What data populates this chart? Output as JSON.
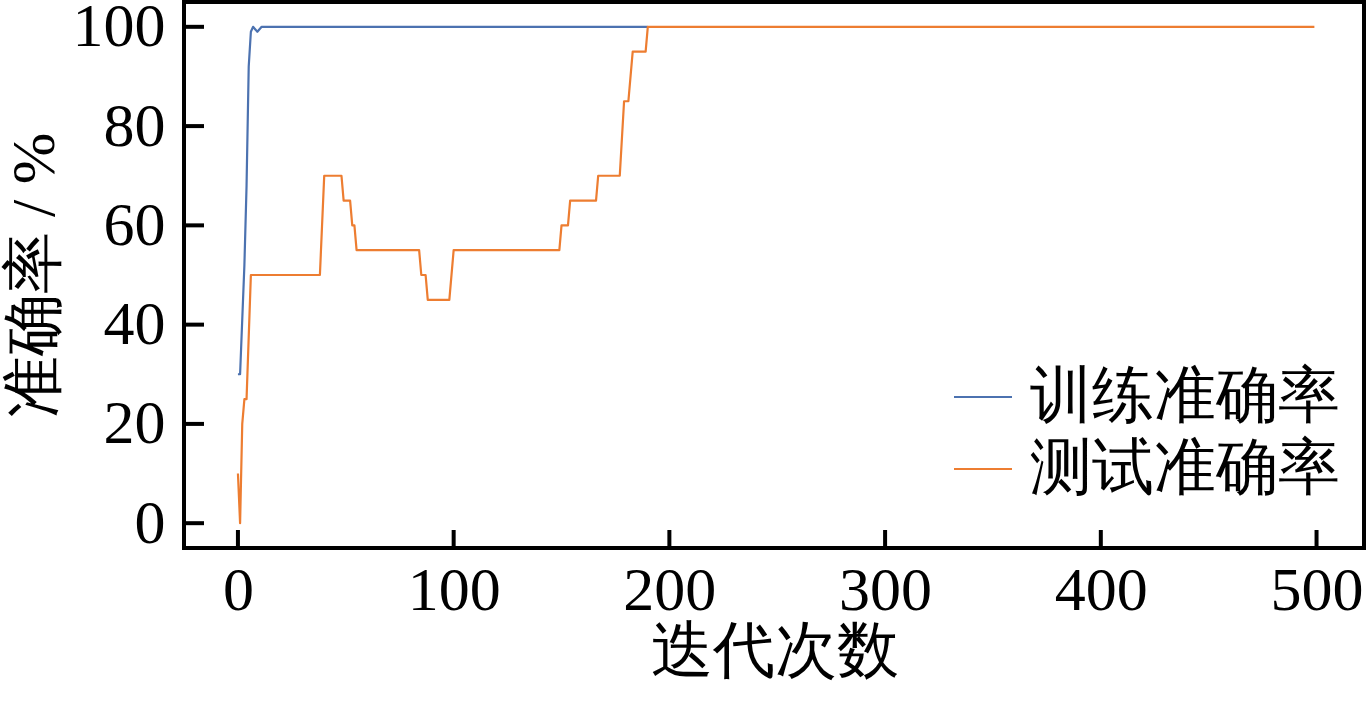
{
  "chart_data": {
    "type": "line",
    "xlabel": "迭代次数",
    "ylabel": "准确率 / %",
    "xlim": [
      -25,
      522
    ],
    "ylim": [
      -5,
      105
    ],
    "xticks": [
      0,
      100,
      200,
      300,
      400,
      500
    ],
    "yticks": [
      0,
      20,
      40,
      60,
      80,
      100
    ],
    "grid": false,
    "legend": "bottom right",
    "line_style": "solid",
    "series": [
      {
        "name": "训练准确率",
        "color": "#4c72b0",
        "x": [
          0,
          1,
          3,
          4,
          5,
          6,
          7,
          9,
          11,
          190
        ],
        "values": [
          30,
          30,
          52,
          68,
          92,
          99,
          100,
          99,
          100,
          100
        ]
      },
      {
        "name": "测试准确率",
        "color": "#ed7d31",
        "x": [
          0,
          1,
          2,
          3,
          4,
          6,
          38,
          40,
          48,
          49,
          52,
          53,
          54,
          55,
          84,
          85,
          87,
          88,
          98,
          100,
          149,
          150,
          153,
          154,
          166,
          167,
          177,
          179,
          181,
          183,
          189,
          190,
          499
        ],
        "values": [
          10,
          0,
          20,
          25,
          25,
          50,
          50,
          70,
          70,
          65,
          65,
          60,
          60,
          55,
          55,
          50,
          50,
          45,
          45,
          55,
          55,
          60,
          60,
          65,
          65,
          70,
          70,
          85,
          85,
          95,
          95,
          100,
          100
        ]
      }
    ]
  }
}
